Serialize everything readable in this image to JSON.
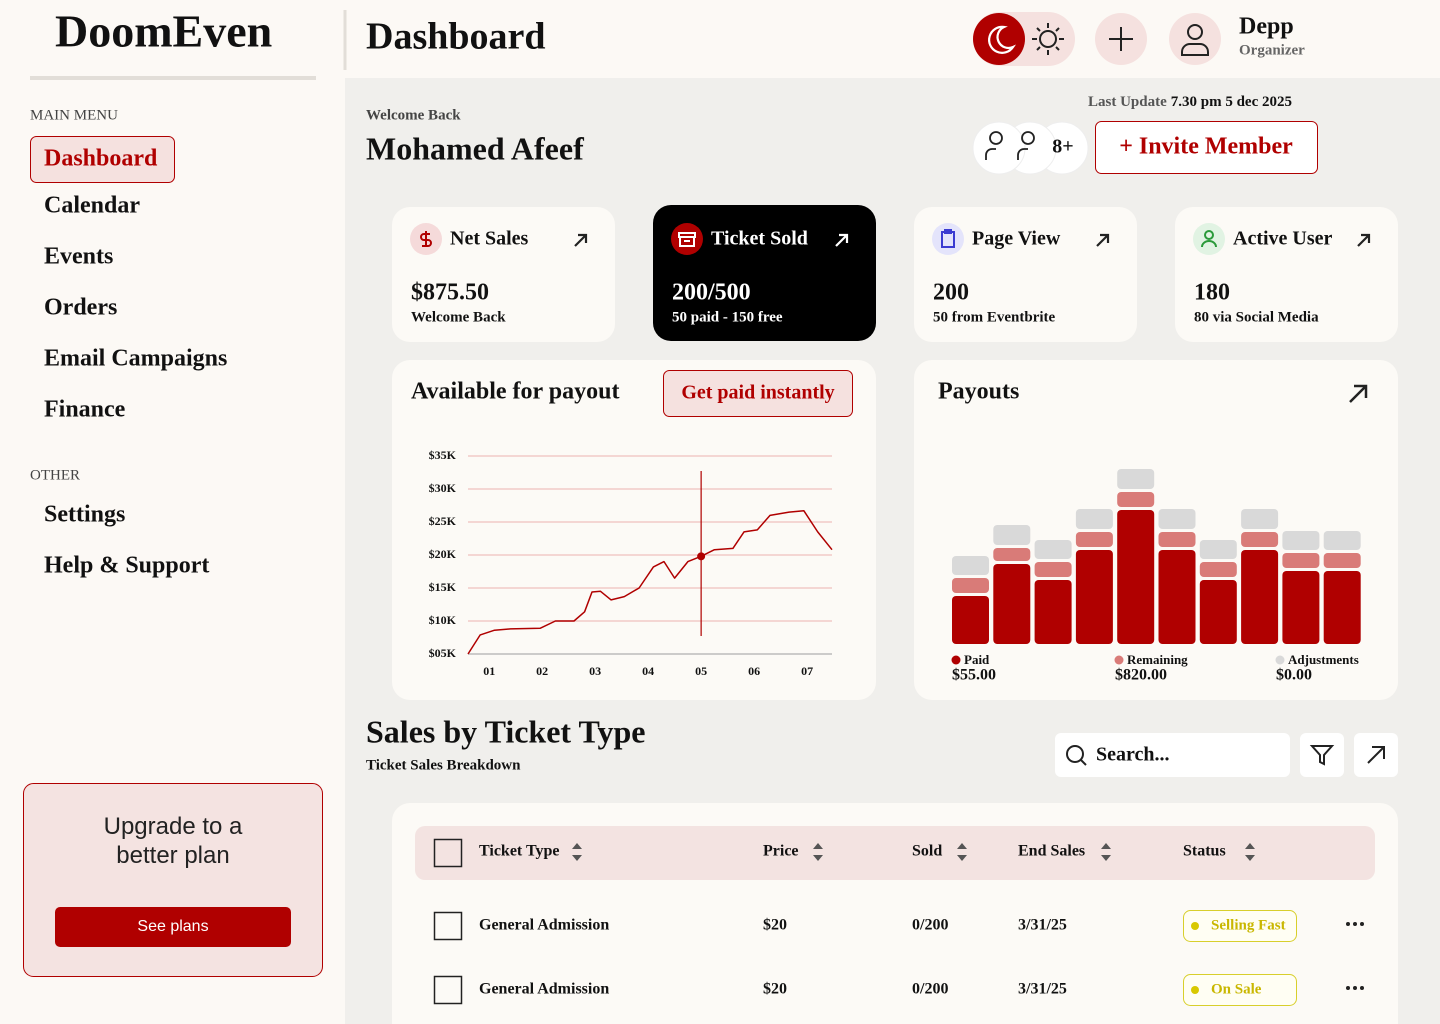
{
  "sidebar": {
    "logo": "DoomEven",
    "main_menu_label": "MAIN MENU",
    "main_menu": [
      "Dashboard",
      "Calendar",
      "Events",
      "Orders",
      "Email Campaigns",
      "Finance"
    ],
    "other_label": "OTHER",
    "other_menu": [
      "Settings",
      "Help & Support"
    ],
    "upgrade": {
      "title": "Upgrade to a better plan",
      "button": "See plans"
    }
  },
  "header": {
    "title": "Dashboard",
    "user": {
      "name": "Depp",
      "role": "Organizer"
    }
  },
  "welcome": {
    "greeting": "Welcome Back",
    "name": "Mohamed Afeef",
    "last_update_label": "Last Update",
    "last_update": "7.30 pm 5 dec 2025",
    "member_count": "8+",
    "invite_button": "+ Invite Member"
  },
  "stats": [
    {
      "title": "Net Sales",
      "value": "$875.50",
      "note": "Welcome Back"
    },
    {
      "title": "Ticket Sold",
      "value": "200/500",
      "note": "50 paid - 150 free"
    },
    {
      "title": "Page View",
      "value": "200",
      "note": "50 from Eventbrite"
    },
    {
      "title": "Active User",
      "value": "180",
      "note": "80 via Social Media"
    }
  ],
  "payout_chart": {
    "type": "line",
    "title": "Available for payout",
    "button": "Get paid instantly",
    "color": "#b00000",
    "x": [
      0.6,
      0.83,
      1.1,
      1.4,
      1.96,
      2.25,
      2.6,
      2.8,
      2.94,
      3.1,
      3.3,
      3.55,
      3.83,
      4.1,
      4.3,
      4.5,
      4.75,
      5.0,
      5.25,
      5.6,
      5.81,
      6.06,
      6.3,
      6.66,
      6.94,
      7.2,
      7.47
    ],
    "values": [
      5000,
      7900,
      8600,
      8800,
      8900,
      10000,
      10000,
      11400,
      14400,
      14500,
      13200,
      13700,
      15000,
      18200,
      19000,
      16500,
      19000,
      19800,
      20800,
      21000,
      23500,
      23800,
      26000,
      26500,
      26700,
      23500,
      20800
    ],
    "highlight": {
      "x": 5,
      "y": 19800
    },
    "xlim": [
      0.6,
      7.47
    ],
    "xticks": [
      {
        "value": 1,
        "label": "01"
      },
      {
        "value": 2,
        "label": "02"
      },
      {
        "value": 3,
        "label": "03"
      },
      {
        "value": 4,
        "label": "04"
      },
      {
        "value": 5,
        "label": "05"
      },
      {
        "value": 6,
        "label": "06"
      },
      {
        "value": 7,
        "label": "07"
      }
    ],
    "ylim": [
      5000,
      35000
    ],
    "yticks": [
      {
        "value": 5000,
        "label": "$05K"
      },
      {
        "value": 10000,
        "label": "$10K"
      },
      {
        "value": 15000,
        "label": "$15K"
      },
      {
        "value": 20000,
        "label": "$20K"
      },
      {
        "value": 25000,
        "label": "$25K"
      },
      {
        "value": 30000,
        "label": "$30K"
      },
      {
        "value": 35000,
        "label": "$35K"
      }
    ],
    "grid": true
  },
  "payouts_chart": {
    "type": "stacked-bar",
    "title": "Payouts",
    "categories": [
      null,
      null,
      null,
      null,
      null,
      null,
      null,
      null,
      null,
      null
    ],
    "ylim": [
      0,
      180
    ],
    "series": [
      {
        "name": "Paid",
        "total": "$55.00",
        "color": "#b00000",
        "values": [
          48,
          80,
          64,
          94,
          134,
          94,
          64,
          94,
          73,
          73
        ]
      },
      {
        "name": "Remaining",
        "total": "$820.00",
        "color": "#d97b78",
        "values": [
          15,
          13,
          15,
          15,
          15,
          15,
          15,
          15,
          15,
          15
        ]
      },
      {
        "name": "Adjustments",
        "total": "$0.00",
        "color": "#d9d9d9",
        "values": [
          19,
          20,
          19,
          20,
          20,
          20,
          19,
          20,
          19,
          19
        ]
      }
    ]
  },
  "sales": {
    "title": "Sales by Ticket Type",
    "subtitle": "Ticket Sales Breakdown",
    "search_placeholder": "Search...",
    "table": {
      "headers": [
        "Ticket Type",
        "Price",
        "Sold",
        "End Sales",
        "Status"
      ],
      "rows": [
        [
          "General Admission",
          "$20",
          "0/200",
          "3/31/25",
          "Selling Fast"
        ],
        [
          "General Admission",
          "$20",
          "0/200",
          "3/31/25",
          "On Sale"
        ]
      ]
    }
  }
}
